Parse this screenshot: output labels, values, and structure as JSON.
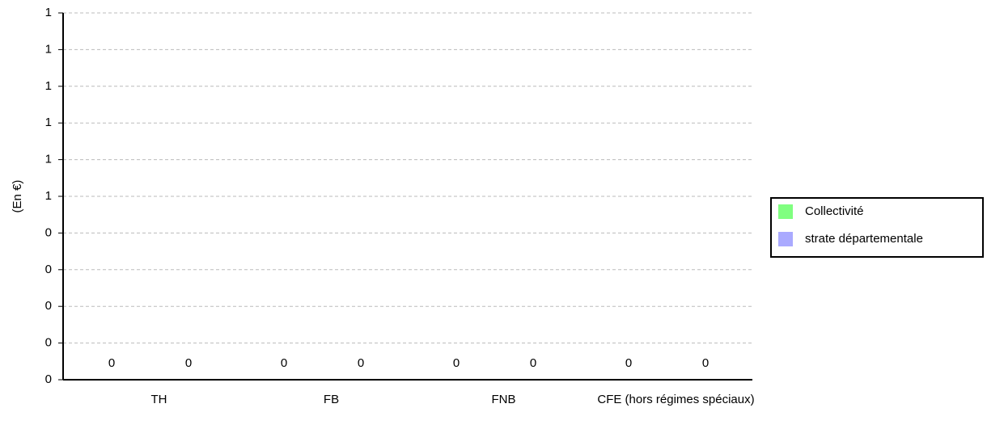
{
  "chart_data": {
    "type": "bar",
    "y_label": "(En €)",
    "categories": [
      "TH",
      "FB",
      "FNB",
      "CFE (hors régimes spéciaux)"
    ],
    "series": [
      {
        "name": "Collectivité",
        "color": "#80ff80",
        "values": [
          0,
          0,
          0,
          0
        ]
      },
      {
        "name": "strate départementale",
        "color": "#aaaaff",
        "values": [
          0,
          0,
          0,
          0
        ]
      }
    ],
    "ylim": [
      0,
      1
    ],
    "yticks": [
      0,
      {
        "value": 0.1,
        "label": "0"
      },
      {
        "value": 0.2,
        "label": "0"
      },
      {
        "value": 0.3,
        "label": "0"
      },
      {
        "value": 0.4,
        "label": "0"
      },
      {
        "value": 0.5,
        "label": "1"
      },
      {
        "value": 0.6,
        "label": "1"
      },
      {
        "value": 0.7,
        "label": "1"
      },
      {
        "value": 0.8,
        "label": "1"
      },
      {
        "value": 0.9,
        "label": "1"
      },
      1
    ],
    "grid": true,
    "legend": "right"
  }
}
